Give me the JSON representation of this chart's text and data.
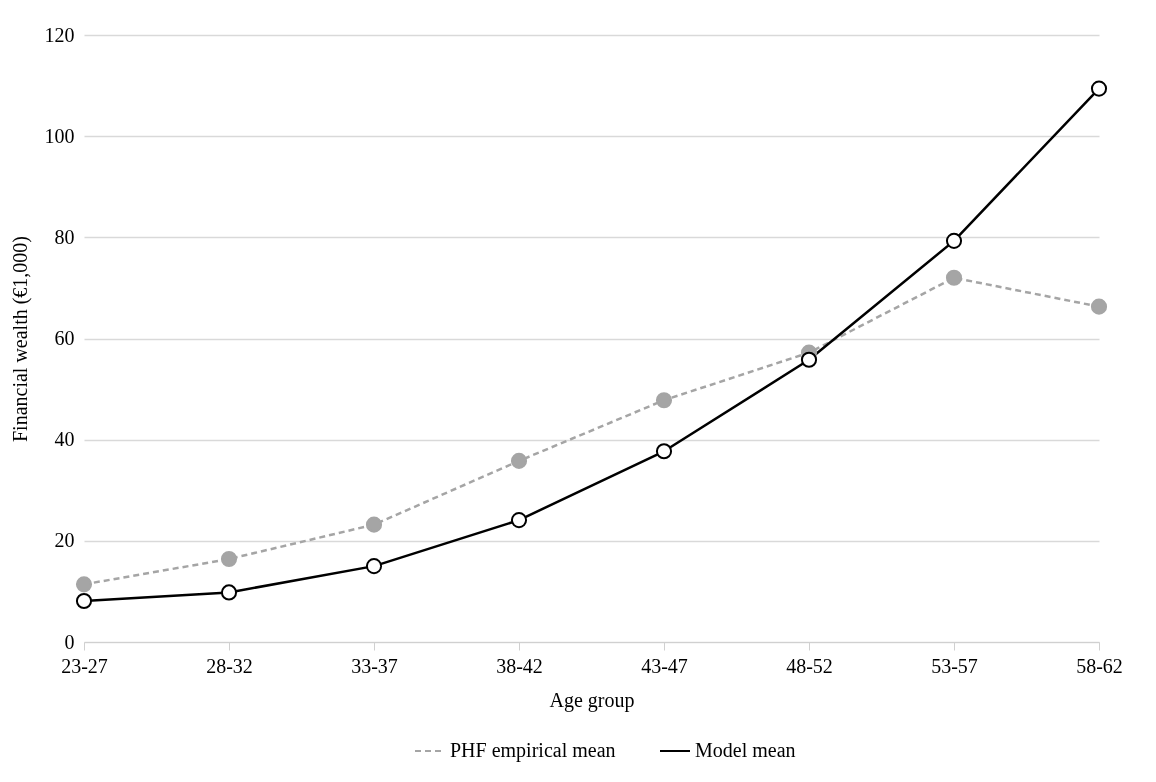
{
  "chart_data": {
    "type": "line",
    "xlabel": "Age group",
    "ylabel": "Financial wealth (€1,000)",
    "categories": [
      "23-27",
      "28-32",
      "33-37",
      "38-42",
      "43-47",
      "48-52",
      "53-57",
      "58-62"
    ],
    "series": [
      {
        "name": "PHF empirical mean",
        "color": "#a5a5a5",
        "line_style": "dashed",
        "values": [
          11.4,
          16.4,
          23.2,
          35.8,
          47.8,
          57.2,
          72.0,
          66.3
        ]
      },
      {
        "name": "Model mean",
        "color": "#000000",
        "line_style": "solid",
        "values": [
          8.1,
          9.8,
          15.0,
          24.1,
          37.7,
          55.8,
          79.3,
          109.4
        ]
      }
    ],
    "ylim": [
      0,
      120
    ],
    "yticks": [
      0,
      20,
      40,
      60,
      80,
      100,
      120
    ],
    "grid": "y",
    "legend": "bottom",
    "marker": "circle"
  }
}
